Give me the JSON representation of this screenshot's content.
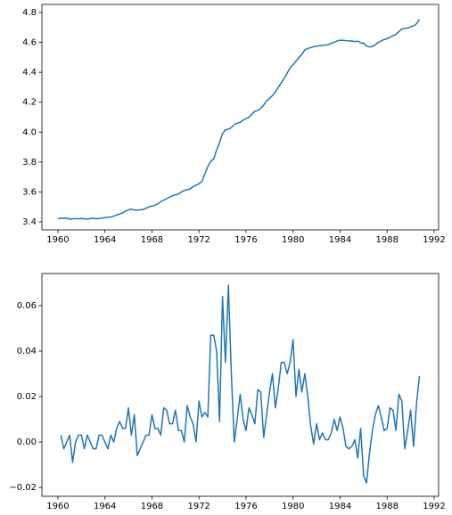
{
  "chart_data": [
    {
      "type": "line",
      "x": [
        1960,
        1960.25,
        1960.5,
        1960.75,
        1961,
        1961.25,
        1961.5,
        1961.75,
        1962,
        1962.25,
        1962.5,
        1962.75,
        1963,
        1963.25,
        1963.5,
        1963.75,
        1964,
        1964.25,
        1964.5,
        1964.75,
        1965,
        1965.25,
        1965.5,
        1965.75,
        1966,
        1966.25,
        1966.5,
        1966.75,
        1967,
        1967.25,
        1967.5,
        1967.75,
        1968,
        1968.25,
        1968.5,
        1968.75,
        1969,
        1969.25,
        1969.5,
        1969.75,
        1970,
        1970.25,
        1970.5,
        1970.75,
        1971,
        1971.25,
        1971.5,
        1971.75,
        1972,
        1972.25,
        1972.5,
        1972.75,
        1973,
        1973.25,
        1973.5,
        1973.75,
        1974,
        1974.25,
        1974.5,
        1974.75,
        1975,
        1975.25,
        1975.5,
        1975.75,
        1976,
        1976.25,
        1976.5,
        1976.75,
        1977,
        1977.25,
        1977.5,
        1977.75,
        1978,
        1978.25,
        1978.5,
        1978.75,
        1979,
        1979.25,
        1979.5,
        1979.75,
        1980,
        1980.25,
        1980.5,
        1980.75,
        1981,
        1981.25,
        1981.5,
        1981.75,
        1982,
        1982.25,
        1982.5,
        1982.75,
        1983,
        1983.25,
        1983.5,
        1983.75,
        1984,
        1984.25,
        1984.5,
        1984.75,
        1985,
        1985.25,
        1985.5,
        1985.75,
        1986,
        1986.25,
        1986.5,
        1986.75,
        1987,
        1987.25,
        1987.5,
        1987.75,
        1988,
        1988.25,
        1988.5,
        1988.75,
        1989,
        1989.25,
        1989.5,
        1989.75,
        1990,
        1990.25,
        1990.5,
        1990.75
      ],
      "series": [
        {
          "color": "#1f77b4",
          "values": [
            3.42,
            3.425,
            3.423,
            3.425,
            3.418,
            3.42,
            3.422,
            3.42,
            3.423,
            3.42,
            3.418,
            3.421,
            3.424,
            3.42,
            3.423,
            3.425,
            3.428,
            3.43,
            3.432,
            3.438,
            3.446,
            3.452,
            3.46,
            3.472,
            3.48,
            3.485,
            3.478,
            3.478,
            3.48,
            3.483,
            3.49,
            3.5,
            3.505,
            3.51,
            3.52,
            3.535,
            3.545,
            3.555,
            3.565,
            3.575,
            3.58,
            3.585,
            3.6,
            3.61,
            3.615,
            3.62,
            3.635,
            3.645,
            3.655,
            3.67,
            3.72,
            3.77,
            3.805,
            3.82,
            3.88,
            3.93,
            3.99,
            4.015,
            4.02,
            4.03,
            4.05,
            4.06,
            4.065,
            4.08,
            4.09,
            4.1,
            4.12,
            4.14,
            4.145,
            4.16,
            4.18,
            4.21,
            4.225,
            4.245,
            4.27,
            4.3,
            4.33,
            4.36,
            4.395,
            4.43,
            4.45,
            4.475,
            4.5,
            4.52,
            4.55,
            4.56,
            4.565,
            4.572,
            4.575,
            4.578,
            4.58,
            4.582,
            4.585,
            4.595,
            4.6,
            4.61,
            4.615,
            4.614,
            4.612,
            4.61,
            4.61,
            4.605,
            4.608,
            4.597,
            4.595,
            4.575,
            4.57,
            4.573,
            4.585,
            4.6,
            4.61,
            4.62,
            4.625,
            4.635,
            4.645,
            4.655,
            4.672,
            4.69,
            4.695,
            4.695,
            4.705,
            4.71,
            4.725,
            4.755
          ]
        }
      ],
      "xlim": [
        1958.64,
        1992.38
      ],
      "xticks": [
        1960,
        1964,
        1968,
        1972,
        1976,
        1980,
        1984,
        1988,
        1992
      ],
      "ylim": [
        3.346,
        4.854
      ],
      "yticks": [
        3.4,
        3.6,
        3.8,
        {
          "value": 4,
          "label": "4.0"
        },
        4.2,
        4.4,
        4.6,
        4.8
      ]
    },
    {
      "type": "line",
      "x": [
        1960.25,
        1960.5,
        1960.75,
        1961,
        1961.25,
        1961.5,
        1961.75,
        1962,
        1962.25,
        1962.5,
        1962.75,
        1963,
        1963.25,
        1963.5,
        1963.75,
        1964,
        1964.25,
        1964.5,
        1964.75,
        1965,
        1965.25,
        1965.5,
        1965.75,
        1966,
        1966.25,
        1966.5,
        1966.75,
        1967,
        1967.25,
        1967.5,
        1967.75,
        1968,
        1968.25,
        1968.5,
        1968.75,
        1969,
        1969.25,
        1969.5,
        1969.75,
        1970,
        1970.25,
        1970.5,
        1970.75,
        1971,
        1971.25,
        1971.5,
        1971.75,
        1972,
        1972.25,
        1972.5,
        1972.75,
        1973,
        1973.25,
        1973.5,
        1973.75,
        1974,
        1974.25,
        1974.5,
        1974.75,
        1975,
        1975.25,
        1975.5,
        1975.75,
        1976,
        1976.25,
        1976.5,
        1976.75,
        1977,
        1977.25,
        1977.5,
        1977.75,
        1978,
        1978.25,
        1978.5,
        1978.75,
        1979,
        1979.25,
        1979.5,
        1979.75,
        1980,
        1980.25,
        1980.5,
        1980.75,
        1981,
        1981.25,
        1981.5,
        1981.75,
        1982,
        1982.25,
        1982.5,
        1982.75,
        1983,
        1983.25,
        1983.5,
        1983.75,
        1984,
        1984.25,
        1984.5,
        1984.75,
        1985,
        1985.25,
        1985.5,
        1985.75,
        1986,
        1986.25,
        1986.5,
        1986.75,
        1987,
        1987.25,
        1987.5,
        1987.75,
        1988,
        1988.25,
        1988.5,
        1988.75,
        1989,
        1989.25,
        1989.5,
        1989.75,
        1990,
        1990.25,
        1990.5,
        1990.75
      ],
      "series": [
        {
          "color": "#1f77b4",
          "values": [
            0.003,
            -0.003,
            0.0,
            0.003,
            -0.009,
            0.0,
            0.003,
            0.003,
            -0.003,
            0.003,
            0.0,
            -0.003,
            -0.003,
            0.003,
            0.003,
            0.0,
            -0.003,
            0.003,
            0.0,
            0.006,
            0.009,
            0.006,
            0.006,
            0.015,
            0.003,
            0.012,
            -0.006,
            -0.003,
            0.0,
            0.003,
            0.003,
            0.012,
            0.006,
            0.006,
            0.003,
            0.015,
            0.014,
            0.008,
            0.008,
            0.014,
            0.005,
            0.005,
            0.0,
            0.016,
            0.011,
            0.008,
            0.0,
            0.018,
            0.011,
            0.013,
            0.011,
            0.047,
            0.047,
            0.04,
            0.009,
            0.064,
            0.035,
            0.069,
            0.03,
            0.0,
            0.01,
            0.021,
            0.01,
            0.005,
            0.015,
            0.012,
            0.008,
            0.023,
            0.022,
            0.002,
            0.012,
            0.022,
            0.03,
            0.015,
            0.024,
            0.035,
            0.035,
            0.03,
            0.035,
            0.045,
            0.02,
            0.032,
            0.022,
            0.03,
            0.02,
            0.007,
            -0.001,
            0.008,
            0.001,
            0.004,
            0.001,
            0.001,
            0.004,
            0.01,
            0.005,
            0.011,
            0.006,
            -0.002,
            -0.003,
            -0.002,
            0.001,
            -0.007,
            0.006,
            -0.015,
            -0.018,
            -0.005,
            0.005,
            0.012,
            0.016,
            0.011,
            0.005,
            0.006,
            0.015,
            0.014,
            0.005,
            0.021,
            0.018,
            -0.003,
            0.005,
            0.014,
            -0.002,
            0.017,
            0.029
          ]
        }
      ],
      "xlim": [
        1958.64,
        1992.38
      ],
      "xticks": [
        1960,
        1964,
        1968,
        1972,
        1976,
        1980,
        1984,
        1988,
        1992
      ],
      "ylim": [
        -0.0239,
        0.0741
      ],
      "yticks": [
        {
          "value": -0.02,
          "label": "−0.02"
        },
        {
          "value": 0,
          "label": "0.00"
        },
        0.02,
        0.04,
        0.06
      ]
    }
  ]
}
